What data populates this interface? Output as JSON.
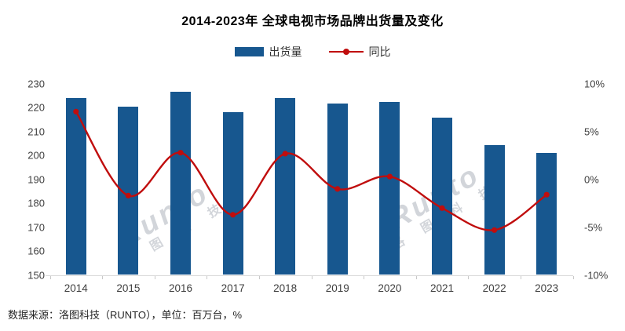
{
  "title": "2014-2023年 全球电视市场品牌出货量及变化",
  "legend": {
    "bars": "出货量",
    "line": "同比"
  },
  "footer": "数据来源：洛图科技（RUNTO），单位：百万台，%",
  "watermark": {
    "brand": "Runto",
    "company": "洛图科技",
    "company_spaced": "洛 图 科 技"
  },
  "colors": {
    "bar": "#17578F",
    "line": "#C00D0D",
    "axis_text": "#404040",
    "baseline": "#D9D9D9",
    "title_text": "#000000",
    "watermark": "rgba(156,162,172,0.45)"
  },
  "chart_data": {
    "type": "bar+line combo",
    "title": "2014-2023年 全球电视市场品牌出货量及变化",
    "categories": [
      "2014",
      "2015",
      "2016",
      "2017",
      "2018",
      "2019",
      "2020",
      "2021",
      "2022",
      "2023"
    ],
    "series": [
      {
        "name": "出货量",
        "type": "bar",
        "axis": "left",
        "unit": "百万台",
        "values": [
          224.2,
          220.5,
          226.6,
          218.3,
          224.1,
          221.8,
          222.4,
          215.8,
          204.3,
          201.0
        ]
      },
      {
        "name": "同比",
        "type": "line",
        "axis": "right",
        "unit": "%",
        "values": [
          7.1,
          -1.7,
          2.8,
          -3.7,
          2.7,
          -1.0,
          0.3,
          -3.0,
          -5.3,
          -1.6
        ]
      }
    ],
    "left_axis": {
      "min": 150,
      "max": 230,
      "step": 10,
      "ticks": [
        230,
        220,
        210,
        200,
        190,
        180,
        170,
        160,
        150
      ]
    },
    "right_axis": {
      "min": -10,
      "max": 10,
      "step": 5,
      "ticks": [
        10,
        5,
        0,
        -5,
        -10
      ],
      "tick_labels": [
        "10%",
        "5%",
        "0%",
        "-5%",
        "-10%"
      ]
    },
    "grid": false,
    "legend_position": "top-center"
  }
}
